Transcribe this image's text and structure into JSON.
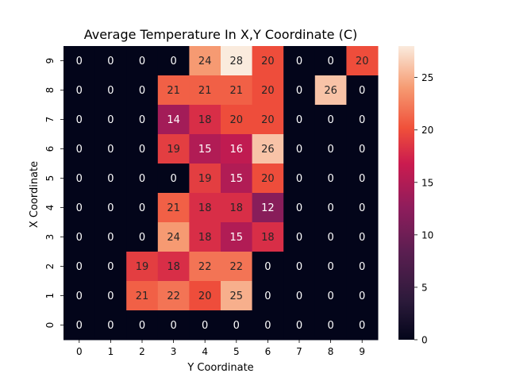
{
  "chart_data": {
    "type": "heatmap",
    "title": "Average Temperature In X,Y Coordinate (C)",
    "xlabel": "Y Coordinate",
    "ylabel": "X Coordinate",
    "x_ticks": [
      "0",
      "1",
      "2",
      "3",
      "4",
      "5",
      "6",
      "7",
      "8",
      "9"
    ],
    "y_ticks": [
      "9",
      "8",
      "7",
      "6",
      "5",
      "4",
      "3",
      "2",
      "1",
      "0"
    ],
    "values": [
      [
        0,
        0,
        0,
        0,
        24,
        28,
        20,
        0,
        0,
        20
      ],
      [
        0,
        0,
        0,
        21,
        21,
        21,
        20,
        0,
        26,
        0
      ],
      [
        0,
        0,
        0,
        14,
        18,
        20,
        20,
        0,
        0,
        0
      ],
      [
        0,
        0,
        0,
        19,
        15,
        16,
        26,
        0,
        0,
        0
      ],
      [
        0,
        0,
        0,
        0,
        19,
        15,
        20,
        0,
        0,
        0
      ],
      [
        0,
        0,
        0,
        21,
        18,
        18,
        12,
        0,
        0,
        0
      ],
      [
        0,
        0,
        0,
        24,
        18,
        15,
        18,
        0,
        0,
        0
      ],
      [
        0,
        0,
        19,
        18,
        22,
        22,
        0,
        0,
        0,
        0
      ],
      [
        0,
        0,
        21,
        22,
        20,
        25,
        0,
        0,
        0,
        0
      ],
      [
        0,
        0,
        0,
        0,
        0,
        0,
        0,
        0,
        0,
        0
      ]
    ],
    "vmin": 0,
    "vmax": 28,
    "colorbar_ticks": [
      "0",
      "5",
      "10",
      "15",
      "20",
      "25"
    ],
    "colormap": "rocket",
    "grid": false
  }
}
